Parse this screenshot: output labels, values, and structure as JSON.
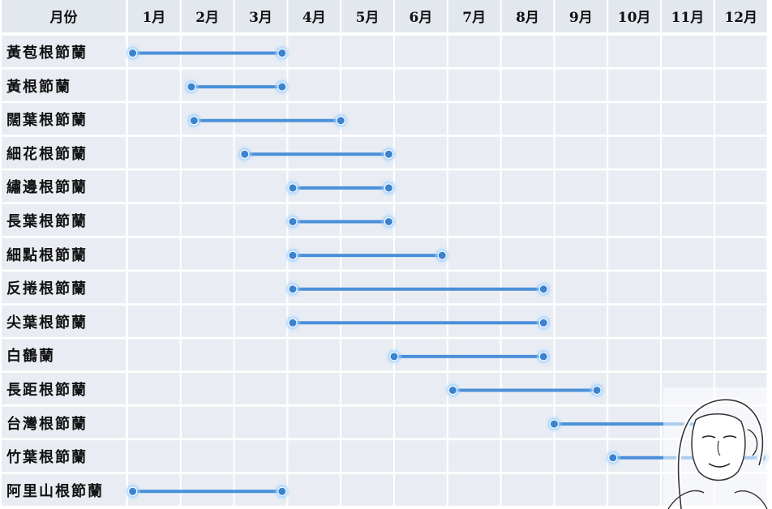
{
  "header": {
    "corner_label": "月份",
    "months": [
      "1月",
      "2月",
      "3月",
      "4月",
      "5月",
      "6月",
      "7月",
      "8月",
      "9月",
      "10月",
      "11月",
      "12月"
    ]
  },
  "chart_data": {
    "type": "range-bar",
    "x_unit": "month",
    "xlim": [
      1,
      13
    ],
    "categories": [
      "黃苞根節蘭",
      "黃根節蘭",
      "闊葉根節蘭",
      "細花根節蘭",
      "繡邊根節蘭",
      "長葉根節蘭",
      "細點根節蘭",
      "反捲根節蘭",
      "尖葉根節蘭",
      "白鶴蘭",
      "長距根節蘭",
      "台灣根節蘭",
      "竹葉根節蘭",
      "阿里山根節蘭"
    ],
    "ranges": [
      {
        "start": 1.1,
        "end": 3.9
      },
      {
        "start": 2.2,
        "end": 3.9
      },
      {
        "start": 2.25,
        "end": 5.0
      },
      {
        "start": 3.2,
        "end": 5.9
      },
      {
        "start": 4.1,
        "end": 5.9
      },
      {
        "start": 4.1,
        "end": 5.9
      },
      {
        "start": 4.1,
        "end": 6.9
      },
      {
        "start": 4.1,
        "end": 8.8
      },
      {
        "start": 4.1,
        "end": 8.8
      },
      {
        "start": 6.0,
        "end": 8.8
      },
      {
        "start": 7.1,
        "end": 9.8
      },
      {
        "start": 9.0,
        "end": 12.3
      },
      {
        "start": 10.1,
        "end": 12.9
      },
      {
        "start": 1.1,
        "end": 3.9
      }
    ],
    "grid": true,
    "colors": {
      "header_bg": "#e3e7ee",
      "cell_bg": "#e9edf3",
      "grid_line": "#ffffff",
      "bar": "#4a90d9",
      "bar_glow": "#9fd0ff",
      "dot": "#3b82d0"
    }
  },
  "watermark": {
    "icon": "face-sketch-icon"
  }
}
